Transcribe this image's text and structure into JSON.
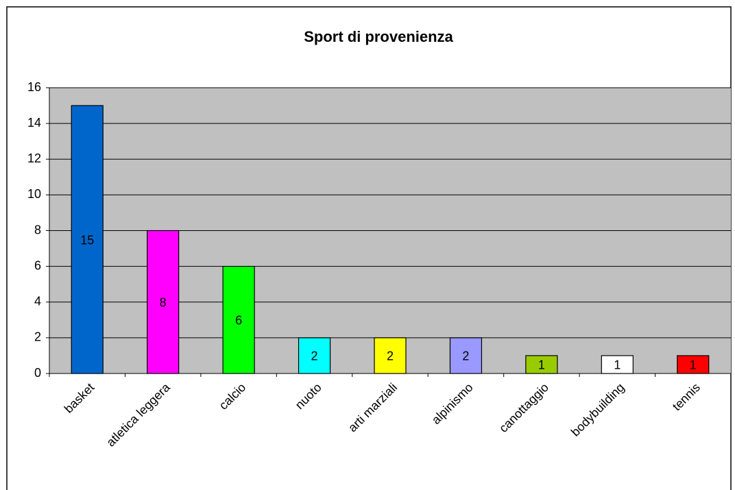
{
  "chart_data": {
    "type": "bar",
    "title": "Sport di provenienza",
    "categories": [
      "basket",
      "atletica leggera",
      "calcio",
      "nuoto",
      "arti marziali",
      "alpinismo",
      "canottaggio",
      "bodybuilding",
      "tennis"
    ],
    "values": [
      15,
      8,
      6,
      2,
      2,
      2,
      1,
      1,
      1
    ],
    "colors": [
      "#0066cc",
      "#ff00ff",
      "#00ff00",
      "#00ffff",
      "#ffff00",
      "#9999ff",
      "#99cc00",
      "#ffffff",
      "#ff0000"
    ],
    "ylim": [
      0,
      16
    ],
    "yticks": [
      0,
      2,
      4,
      6,
      8,
      10,
      12,
      14,
      16
    ],
    "grid": true
  }
}
